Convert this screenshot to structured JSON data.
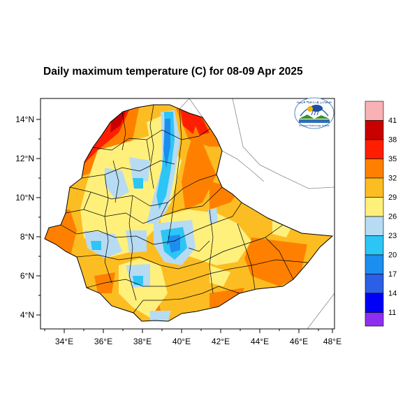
{
  "title": "Daily maximum temperature (C) for 08-09 Apr 2025",
  "logo": {
    "top_text": "ብሔራዊ ሚቲዮሮሎጂ ኢንስቲትዩት",
    "bottom_text": "Ethiopian Meteorology Institute"
  },
  "map": {
    "lat_ticks": [
      "14°N",
      "12°N",
      "10°N",
      "8°N",
      "6°N",
      "4°N"
    ],
    "lon_ticks": [
      "34°E",
      "36°E",
      "38°E",
      "40°E",
      "42°E",
      "44°E",
      "46°E",
      "48°E"
    ],
    "lon_range": [
      33,
      48
    ],
    "lat_range": [
      3.2,
      15
    ]
  },
  "colorbar": {
    "labels": [
      "41",
      "38",
      "35",
      "32",
      "29",
      "26",
      "23",
      "20",
      "17",
      "14",
      "11"
    ],
    "colors": [
      "#f8b2b6",
      "#c80000",
      "#ff1f00",
      "#ff8000",
      "#fcbd22",
      "#fff07c",
      "#b7dbf2",
      "#2dc5f5",
      "#1c8ef0",
      "#2b5fe6",
      "#0000f7",
      "#8e2ff0"
    ]
  }
}
